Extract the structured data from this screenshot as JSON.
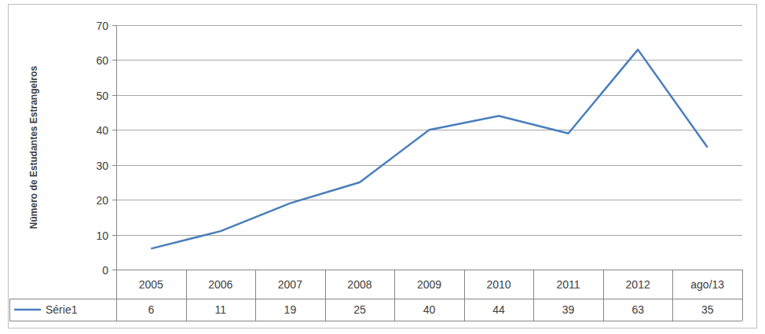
{
  "chart_data": {
    "type": "line",
    "y_label": "Número de Estudantes Estrangeiros",
    "categories": [
      "2005",
      "2006",
      "2007",
      "2008",
      "2009",
      "2010",
      "2011",
      "2012",
      "ago/13"
    ],
    "series": [
      {
        "name": "Série1",
        "color": "#4a7ebb",
        "values": [
          6,
          11,
          19,
          25,
          40,
          44,
          39,
          63,
          35
        ]
      }
    ],
    "ylim": [
      0,
      70
    ],
    "yticks": [
      0,
      10,
      20,
      30,
      40,
      50,
      60,
      70
    ],
    "grid": true
  }
}
